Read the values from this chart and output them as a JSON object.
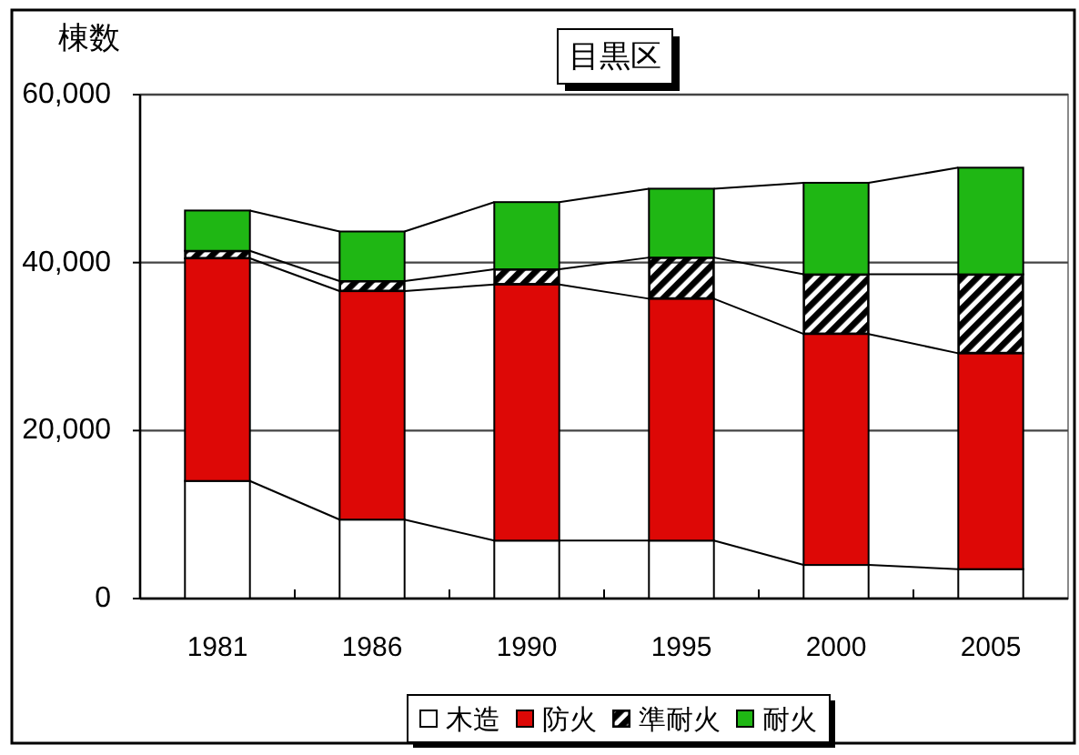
{
  "chart_data": {
    "type": "bar",
    "stacked": true,
    "title": "目黒区",
    "ylabel": "棟数",
    "categories": [
      "1981",
      "1986",
      "1990",
      "1995",
      "2000",
      "2005"
    ],
    "ylim": [
      0,
      60000
    ],
    "yticks": [
      0,
      {
        "value": 20000,
        "label": "20,000"
      },
      {
        "value": 40000,
        "label": "40,000"
      },
      {
        "value": 60000,
        "label": "60,000"
      }
    ],
    "grid": "y",
    "legend": "bottom",
    "series": [
      {
        "name": "木造",
        "color": "#ffffff",
        "values": [
          14000,
          9400,
          6900,
          6900,
          4000,
          3500
        ]
      },
      {
        "name": "防火",
        "color": "#dd0806",
        "values": [
          26500,
          27200,
          30500,
          28800,
          27500,
          25700
        ]
      },
      {
        "name": "準耐火",
        "color": "#000000",
        "values": [
          900,
          1200,
          1800,
          4900,
          7100,
          9400
        ]
      },
      {
        "name": "耐火",
        "color": "#1fb714",
        "values": [
          4800,
          5900,
          8000,
          8200,
          10900,
          12700
        ]
      }
    ]
  }
}
